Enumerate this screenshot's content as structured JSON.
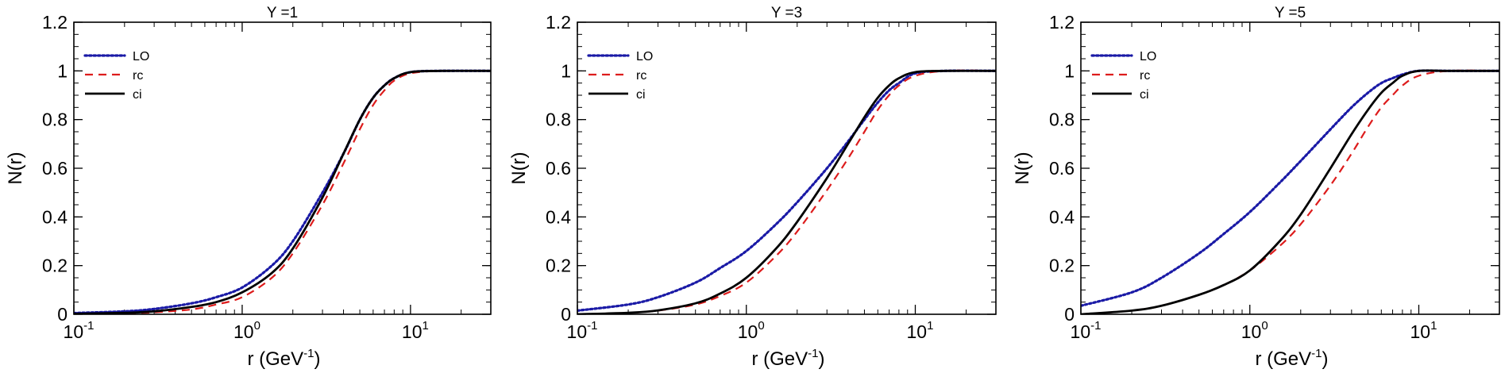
{
  "chart_data": [
    {
      "type": "line",
      "title": "Y =1",
      "xlabel": "r (GeV",
      "xlabel_sup": "-1",
      "xlabel_end": ")",
      "ylabel": "N(r)",
      "xscale": "log",
      "xlim": [
        0.1,
        30
      ],
      "ylim": [
        0,
        1.2
      ],
      "yticks": [
        0,
        0.2,
        0.4,
        0.6,
        0.8,
        1,
        1.2
      ],
      "ytick_labels": [
        "0",
        "0.2",
        "0.4",
        "0.6",
        "0.8",
        "1",
        "1.2"
      ],
      "xticks": [
        0.1,
        1,
        10
      ],
      "xtick_labels": [
        {
          "base": "10",
          "exp": "-1"
        },
        {
          "base": "10",
          "exp": "0"
        },
        {
          "base": "10",
          "exp": "1"
        }
      ],
      "legend_position": "top-left",
      "series": [
        {
          "name": "LO",
          "color": "#1a1aa6",
          "style": "dotted",
          "x": [
            0.1,
            0.2,
            0.3,
            0.5,
            0.7,
            1,
            1.5,
            2,
            3,
            4,
            5,
            6,
            7,
            8,
            10,
            15,
            30
          ],
          "y": [
            0.005,
            0.012,
            0.022,
            0.045,
            0.07,
            0.11,
            0.2,
            0.3,
            0.5,
            0.66,
            0.8,
            0.89,
            0.94,
            0.97,
            0.995,
            1.0,
            1.0
          ]
        },
        {
          "name": "rc",
          "color": "#dd1c1c",
          "style": "dashed",
          "x": [
            0.1,
            0.2,
            0.3,
            0.5,
            0.7,
            1,
            1.5,
            2,
            3,
            4,
            5,
            6,
            7,
            8,
            10,
            15,
            30
          ],
          "y": [
            0.001,
            0.004,
            0.008,
            0.02,
            0.04,
            0.07,
            0.15,
            0.25,
            0.45,
            0.62,
            0.76,
            0.86,
            0.92,
            0.96,
            0.99,
            1.0,
            1.0
          ]
        },
        {
          "name": "ci",
          "color": "#000000",
          "style": "solid",
          "x": [
            0.1,
            0.2,
            0.3,
            0.5,
            0.7,
            1,
            1.5,
            2,
            3,
            4,
            5,
            6,
            7,
            8,
            10,
            15,
            30
          ],
          "y": [
            0.002,
            0.006,
            0.012,
            0.03,
            0.05,
            0.09,
            0.17,
            0.27,
            0.48,
            0.66,
            0.8,
            0.89,
            0.94,
            0.97,
            0.995,
            1.0,
            1.0
          ]
        }
      ]
    },
    {
      "type": "line",
      "title": "Y =3",
      "xlabel": "r (GeV",
      "xlabel_sup": "-1",
      "xlabel_end": ")",
      "ylabel": "N(r)",
      "xscale": "log",
      "xlim": [
        0.1,
        30
      ],
      "ylim": [
        0,
        1.2
      ],
      "yticks": [
        0,
        0.2,
        0.4,
        0.6,
        0.8,
        1,
        1.2
      ],
      "ytick_labels": [
        "0",
        "0.2",
        "0.4",
        "0.6",
        "0.8",
        "1",
        "1.2"
      ],
      "xticks": [
        0.1,
        1,
        10
      ],
      "xtick_labels": [
        {
          "base": "10",
          "exp": "-1"
        },
        {
          "base": "10",
          "exp": "0"
        },
        {
          "base": "10",
          "exp": "1"
        }
      ],
      "legend_position": "top-left",
      "series": [
        {
          "name": "LO",
          "color": "#1a1aa6",
          "style": "dotted",
          "x": [
            0.1,
            0.2,
            0.3,
            0.5,
            0.7,
            1,
            1.5,
            2,
            3,
            4,
            5,
            6,
            7,
            8,
            10,
            15,
            30
          ],
          "y": [
            0.015,
            0.04,
            0.07,
            0.13,
            0.19,
            0.26,
            0.37,
            0.46,
            0.6,
            0.71,
            0.8,
            0.87,
            0.92,
            0.95,
            0.99,
            1.0,
            1.0
          ]
        },
        {
          "name": "rc",
          "color": "#dd1c1c",
          "style": "dashed",
          "x": [
            0.1,
            0.2,
            0.3,
            0.5,
            0.7,
            1,
            1.5,
            2,
            3,
            4,
            5,
            6,
            7,
            8,
            10,
            15,
            30
          ],
          "y": [
            0.0,
            0.006,
            0.015,
            0.04,
            0.075,
            0.13,
            0.24,
            0.34,
            0.51,
            0.64,
            0.75,
            0.84,
            0.9,
            0.94,
            0.98,
            1.0,
            1.0
          ]
        },
        {
          "name": "ci",
          "color": "#000000",
          "style": "solid",
          "x": [
            0.1,
            0.2,
            0.3,
            0.5,
            0.7,
            1,
            1.5,
            2,
            3,
            4,
            5,
            6,
            7,
            8,
            10,
            15,
            30
          ],
          "y": [
            0.0,
            0.006,
            0.016,
            0.045,
            0.085,
            0.15,
            0.27,
            0.38,
            0.56,
            0.7,
            0.81,
            0.89,
            0.94,
            0.97,
            0.995,
            1.0,
            1.0
          ]
        }
      ]
    },
    {
      "type": "line",
      "title": "Y =5",
      "xlabel": "r (GeV",
      "xlabel_sup": "-1",
      "xlabel_end": ")",
      "ylabel": "N(r)",
      "xscale": "log",
      "xlim": [
        0.1,
        30
      ],
      "ylim": [
        0,
        1.2
      ],
      "yticks": [
        0,
        0.2,
        0.4,
        0.6,
        0.8,
        1,
        1.2
      ],
      "ytick_labels": [
        "0",
        "0.2",
        "0.4",
        "0.6",
        "0.8",
        "1",
        "1.2"
      ],
      "xticks": [
        0.1,
        1,
        10
      ],
      "xtick_labels": [
        {
          "base": "10",
          "exp": "-1"
        },
        {
          "base": "10",
          "exp": "0"
        },
        {
          "base": "10",
          "exp": "1"
        }
      ],
      "legend_position": "top-left",
      "series": [
        {
          "name": "LO",
          "color": "#1a1aa6",
          "style": "dotted",
          "x": [
            0.1,
            0.2,
            0.3,
            0.5,
            0.7,
            1,
            1.5,
            2,
            3,
            4,
            5,
            6,
            7,
            8,
            10,
            15,
            30
          ],
          "y": [
            0.035,
            0.09,
            0.15,
            0.25,
            0.33,
            0.42,
            0.54,
            0.63,
            0.76,
            0.85,
            0.91,
            0.95,
            0.97,
            0.985,
            1.0,
            1.0,
            1.0
          ]
        },
        {
          "name": "rc",
          "color": "#dd1c1c",
          "style": "dashed",
          "x": [
            0.1,
            0.2,
            0.3,
            0.5,
            0.7,
            1,
            1.5,
            2,
            3,
            4,
            5,
            6,
            7,
            8,
            10,
            15,
            30
          ],
          "y": [
            0.0,
            0.015,
            0.035,
            0.08,
            0.12,
            0.18,
            0.28,
            0.37,
            0.53,
            0.66,
            0.77,
            0.85,
            0.9,
            0.94,
            0.98,
            1.0,
            1.0
          ]
        },
        {
          "name": "ci",
          "color": "#000000",
          "style": "solid",
          "x": [
            0.1,
            0.2,
            0.3,
            0.5,
            0.7,
            1,
            1.5,
            2,
            3,
            4,
            5,
            6,
            7,
            8,
            10,
            15,
            30
          ],
          "y": [
            0.0,
            0.015,
            0.035,
            0.08,
            0.12,
            0.18,
            0.3,
            0.41,
            0.6,
            0.74,
            0.84,
            0.91,
            0.95,
            0.98,
            1.0,
            1.0,
            1.0
          ]
        }
      ]
    }
  ]
}
